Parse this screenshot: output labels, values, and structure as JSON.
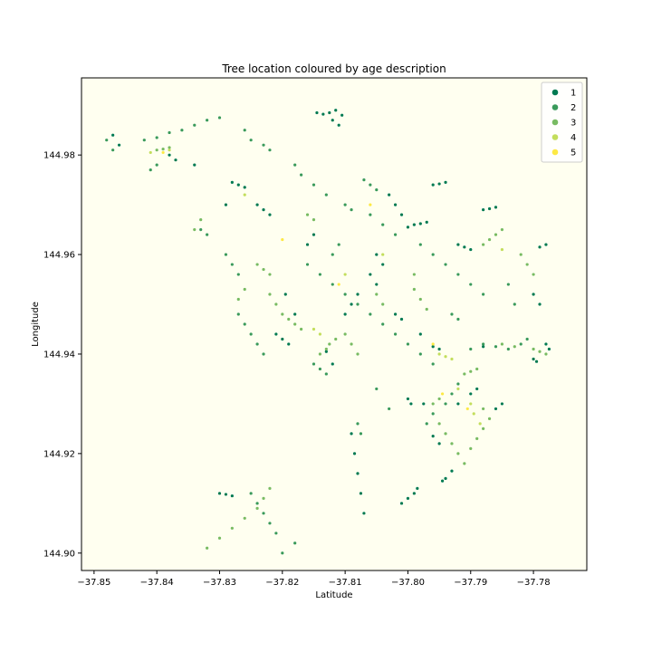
{
  "chart_data": {
    "type": "scatter",
    "title": "Tree location coloured by age description",
    "xlabel": "Latitude",
    "ylabel": "Longitude",
    "xlim": [
      -37.852,
      -37.7715
    ],
    "ylim": [
      144.8965,
      144.9955
    ],
    "xticks": [
      -37.85,
      -37.84,
      -37.83,
      -37.82,
      -37.81,
      -37.8,
      -37.79,
      -37.78
    ],
    "xtick_labels": [
      "−37.85",
      "−37.84",
      "−37.83",
      "−37.82",
      "−37.81",
      "−37.80",
      "−37.79",
      "−37.78"
    ],
    "yticks": [
      144.9,
      144.92,
      144.94,
      144.96,
      144.98
    ],
    "ytick_labels": [
      "144.90",
      "144.92",
      "144.94",
      "144.96",
      "144.98"
    ],
    "background": "#fffff0",
    "grid": false,
    "legend_position": "top-right",
    "series": [
      {
        "name": "1",
        "color": "#007a52",
        "points": [
          [
            -37.8145,
            144.9885
          ],
          [
            -37.8135,
            144.9882
          ],
          [
            -37.8125,
            144.9885
          ],
          [
            -37.8115,
            144.989
          ],
          [
            -37.8105,
            144.988
          ],
          [
            -37.812,
            144.987
          ],
          [
            -37.811,
            144.986
          ],
          [
            -37.803,
            144.972
          ],
          [
            -37.802,
            144.97
          ],
          [
            -37.801,
            144.968
          ],
          [
            -37.8,
            144.9655
          ],
          [
            -37.799,
            144.966
          ],
          [
            -37.798,
            144.9662
          ],
          [
            -37.797,
            144.9665
          ],
          [
            -37.796,
            144.974
          ],
          [
            -37.795,
            144.9742
          ],
          [
            -37.794,
            144.9745
          ],
          [
            -37.788,
            144.969
          ],
          [
            -37.787,
            144.9692
          ],
          [
            -37.786,
            144.9695
          ],
          [
            -37.792,
            144.962
          ],
          [
            -37.791,
            144.9615
          ],
          [
            -37.79,
            144.961
          ],
          [
            -37.78,
            144.952
          ],
          [
            -37.779,
            144.95
          ],
          [
            -37.778,
            144.942
          ],
          [
            -37.7775,
            144.941
          ],
          [
            -37.828,
            144.9745
          ],
          [
            -37.827,
            144.974
          ],
          [
            -37.826,
            144.9735
          ],
          [
            -37.824,
            144.97
          ],
          [
            -37.823,
            144.969
          ],
          [
            -37.822,
            144.968
          ],
          [
            -37.8195,
            144.952
          ],
          [
            -37.818,
            144.948
          ],
          [
            -37.81,
            144.948
          ],
          [
            -37.809,
            144.95
          ],
          [
            -37.808,
            144.952
          ],
          [
            -37.806,
            144.956
          ],
          [
            -37.805,
            144.954
          ],
          [
            -37.802,
            144.948
          ],
          [
            -37.801,
            144.947
          ],
          [
            -37.798,
            144.944
          ],
          [
            -37.796,
            144.9415
          ],
          [
            -37.795,
            144.941
          ],
          [
            -37.7945,
            144.9145
          ],
          [
            -37.794,
            144.915
          ],
          [
            -37.793,
            144.9165
          ],
          [
            -37.795,
            144.922
          ],
          [
            -37.796,
            144.9235
          ],
          [
            -37.792,
            144.93
          ],
          [
            -37.79,
            144.932
          ],
          [
            -37.789,
            144.933
          ],
          [
            -37.786,
            144.929
          ],
          [
            -37.785,
            144.93
          ],
          [
            -37.809,
            144.924
          ],
          [
            -37.8085,
            144.92
          ],
          [
            -37.808,
            144.916
          ],
          [
            -37.8075,
            144.912
          ],
          [
            -37.807,
            144.908
          ],
          [
            -37.801,
            144.91
          ],
          [
            -37.8,
            144.911
          ],
          [
            -37.799,
            144.912
          ],
          [
            -37.7985,
            144.913
          ],
          [
            -37.847,
            144.984
          ],
          [
            -37.846,
            144.982
          ],
          [
            -37.838,
            144.98
          ],
          [
            -37.837,
            144.979
          ],
          [
            -37.829,
            144.97
          ],
          [
            -37.834,
            144.978
          ],
          [
            -37.821,
            144.944
          ],
          [
            -37.82,
            144.943
          ],
          [
            -37.819,
            144.942
          ],
          [
            -37.813,
            144.9405
          ],
          [
            -37.812,
            144.938
          ],
          [
            -37.83,
            144.912
          ],
          [
            -37.829,
            144.9118
          ],
          [
            -37.828,
            144.9115
          ],
          [
            -37.805,
            144.96
          ],
          [
            -37.804,
            144.958
          ],
          [
            -37.778,
            144.962
          ],
          [
            -37.779,
            144.9615
          ],
          [
            -37.816,
            144.962
          ],
          [
            -37.815,
            144.964
          ],
          [
            -37.8,
            144.931
          ],
          [
            -37.7995,
            144.93
          ],
          [
            -37.7975,
            144.93
          ],
          [
            -37.788,
            144.9415
          ],
          [
            -37.78,
            144.939
          ],
          [
            -37.7795,
            144.9385
          ]
        ]
      },
      {
        "name": "2",
        "color": "#3a9a5b",
        "points": [
          [
            -37.848,
            144.983
          ],
          [
            -37.847,
            144.981
          ],
          [
            -37.842,
            144.983
          ],
          [
            -37.84,
            144.9835
          ],
          [
            -37.838,
            144.9845
          ],
          [
            -37.836,
            144.985
          ],
          [
            -37.834,
            144.986
          ],
          [
            -37.832,
            144.987
          ],
          [
            -37.83,
            144.9875
          ],
          [
            -37.826,
            144.985
          ],
          [
            -37.825,
            144.983
          ],
          [
            -37.823,
            144.982
          ],
          [
            -37.822,
            144.981
          ],
          [
            -37.818,
            144.978
          ],
          [
            -37.817,
            144.976
          ],
          [
            -37.815,
            144.974
          ],
          [
            -37.813,
            144.972
          ],
          [
            -37.81,
            144.97
          ],
          [
            -37.809,
            144.969
          ],
          [
            -37.806,
            144.968
          ],
          [
            -37.804,
            144.966
          ],
          [
            -37.802,
            144.964
          ],
          [
            -37.798,
            144.962
          ],
          [
            -37.796,
            144.96
          ],
          [
            -37.794,
            144.958
          ],
          [
            -37.792,
            144.956
          ],
          [
            -37.79,
            144.954
          ],
          [
            -37.788,
            144.952
          ],
          [
            -37.816,
            144.958
          ],
          [
            -37.814,
            144.956
          ],
          [
            -37.812,
            144.954
          ],
          [
            -37.81,
            144.952
          ],
          [
            -37.808,
            144.95
          ],
          [
            -37.806,
            144.948
          ],
          [
            -37.804,
            144.946
          ],
          [
            -37.802,
            144.944
          ],
          [
            -37.8,
            144.942
          ],
          [
            -37.798,
            144.94
          ],
          [
            -37.796,
            144.938
          ],
          [
            -37.827,
            144.948
          ],
          [
            -37.826,
            144.946
          ],
          [
            -37.825,
            144.944
          ],
          [
            -37.824,
            144.942
          ],
          [
            -37.823,
            144.94
          ],
          [
            -37.815,
            144.938
          ],
          [
            -37.814,
            144.937
          ],
          [
            -37.813,
            144.936
          ],
          [
            -37.79,
            144.941
          ],
          [
            -37.788,
            144.942
          ],
          [
            -37.786,
            144.9415
          ],
          [
            -37.784,
            144.941
          ],
          [
            -37.782,
            144.942
          ],
          [
            -37.781,
            144.943
          ],
          [
            -37.783,
            144.95
          ],
          [
            -37.784,
            144.954
          ],
          [
            -37.792,
            144.934
          ],
          [
            -37.793,
            144.932
          ],
          [
            -37.794,
            144.93
          ],
          [
            -37.796,
            144.928
          ],
          [
            -37.797,
            144.926
          ],
          [
            -37.825,
            144.912
          ],
          [
            -37.824,
            144.91
          ],
          [
            -37.823,
            144.908
          ],
          [
            -37.822,
            144.906
          ],
          [
            -37.821,
            144.904
          ],
          [
            -37.82,
            144.9
          ],
          [
            -37.818,
            144.902
          ],
          [
            -37.833,
            144.965
          ],
          [
            -37.832,
            144.964
          ],
          [
            -37.829,
            144.96
          ],
          [
            -37.828,
            144.958
          ],
          [
            -37.827,
            144.956
          ],
          [
            -37.812,
            144.96
          ],
          [
            -37.811,
            144.962
          ],
          [
            -37.793,
            144.948
          ],
          [
            -37.792,
            144.947
          ],
          [
            -37.805,
            144.973
          ],
          [
            -37.806,
            144.974
          ],
          [
            -37.807,
            144.975
          ],
          [
            -37.84,
            144.978
          ],
          [
            -37.841,
            144.977
          ],
          [
            -37.808,
            144.926
          ],
          [
            -37.8075,
            144.924
          ],
          [
            -37.803,
            144.929
          ],
          [
            -37.805,
            144.933
          ]
        ]
      },
      {
        "name": "3",
        "color": "#78bb62",
        "points": [
          [
            -37.82,
            144.948
          ],
          [
            -37.819,
            144.947
          ],
          [
            -37.818,
            144.946
          ],
          [
            -37.817,
            144.945
          ],
          [
            -37.821,
            144.95
          ],
          [
            -37.822,
            144.952
          ],
          [
            -37.814,
            144.94
          ],
          [
            -37.813,
            144.941
          ],
          [
            -37.8125,
            144.942
          ],
          [
            -37.8115,
            144.943
          ],
          [
            -37.795,
            144.926
          ],
          [
            -37.794,
            144.924
          ],
          [
            -37.793,
            144.922
          ],
          [
            -37.792,
            144.92
          ],
          [
            -37.791,
            144.918
          ],
          [
            -37.79,
            144.921
          ],
          [
            -37.789,
            144.923
          ],
          [
            -37.788,
            144.925
          ],
          [
            -37.787,
            144.927
          ],
          [
            -37.788,
            144.929
          ],
          [
            -37.791,
            144.936
          ],
          [
            -37.79,
            144.9365
          ],
          [
            -37.789,
            144.937
          ],
          [
            -37.785,
            144.942
          ],
          [
            -37.783,
            144.9415
          ],
          [
            -37.78,
            144.941
          ],
          [
            -37.779,
            144.9405
          ],
          [
            -37.778,
            144.94
          ],
          [
            -37.785,
            144.965
          ],
          [
            -37.786,
            144.964
          ],
          [
            -37.787,
            144.963
          ],
          [
            -37.788,
            144.962
          ],
          [
            -37.832,
            144.901
          ],
          [
            -37.83,
            144.903
          ],
          [
            -37.828,
            144.905
          ],
          [
            -37.826,
            144.907
          ],
          [
            -37.824,
            144.909
          ],
          [
            -37.823,
            144.911
          ],
          [
            -37.822,
            144.913
          ],
          [
            -37.84,
            144.981
          ],
          [
            -37.839,
            144.9812
          ],
          [
            -37.838,
            144.9815
          ],
          [
            -37.822,
            144.956
          ],
          [
            -37.823,
            144.957
          ],
          [
            -37.824,
            144.958
          ],
          [
            -37.826,
            144.953
          ],
          [
            -37.827,
            144.951
          ],
          [
            -37.81,
            144.944
          ],
          [
            -37.809,
            144.942
          ],
          [
            -37.808,
            144.94
          ],
          [
            -37.799,
            144.953
          ],
          [
            -37.798,
            144.951
          ],
          [
            -37.797,
            144.949
          ],
          [
            -37.816,
            144.968
          ],
          [
            -37.815,
            144.967
          ],
          [
            -37.782,
            144.96
          ],
          [
            -37.781,
            144.958
          ],
          [
            -37.78,
            144.956
          ],
          [
            -37.834,
            144.965
          ],
          [
            -37.833,
            144.967
          ],
          [
            -37.796,
            144.93
          ],
          [
            -37.795,
            144.931
          ],
          [
            -37.805,
            144.952
          ],
          [
            -37.804,
            144.95
          ],
          [
            -37.799,
            144.956
          ]
        ]
      },
      {
        "name": "4",
        "color": "#c3de5c",
        "points": [
          [
            -37.79,
            144.93
          ],
          [
            -37.7895,
            144.928
          ],
          [
            -37.7885,
            144.926
          ],
          [
            -37.795,
            144.94
          ],
          [
            -37.794,
            144.9395
          ],
          [
            -37.793,
            144.939
          ],
          [
            -37.838,
            144.981
          ],
          [
            -37.841,
            144.9805
          ],
          [
            -37.815,
            144.945
          ],
          [
            -37.814,
            144.944
          ],
          [
            -37.804,
            144.96
          ],
          [
            -37.826,
            144.972
          ],
          [
            -37.792,
            144.933
          ],
          [
            -37.81,
            144.956
          ],
          [
            -37.785,
            144.961
          ]
        ]
      },
      {
        "name": "5",
        "color": "#fde944",
        "points": [
          [
            -37.839,
            144.9805
          ],
          [
            -37.7945,
            144.932
          ],
          [
            -37.811,
            144.954
          ],
          [
            -37.806,
            144.97
          ],
          [
            -37.7905,
            144.929
          ],
          [
            -37.82,
            144.963
          ],
          [
            -37.796,
            144.942
          ]
        ]
      }
    ]
  }
}
